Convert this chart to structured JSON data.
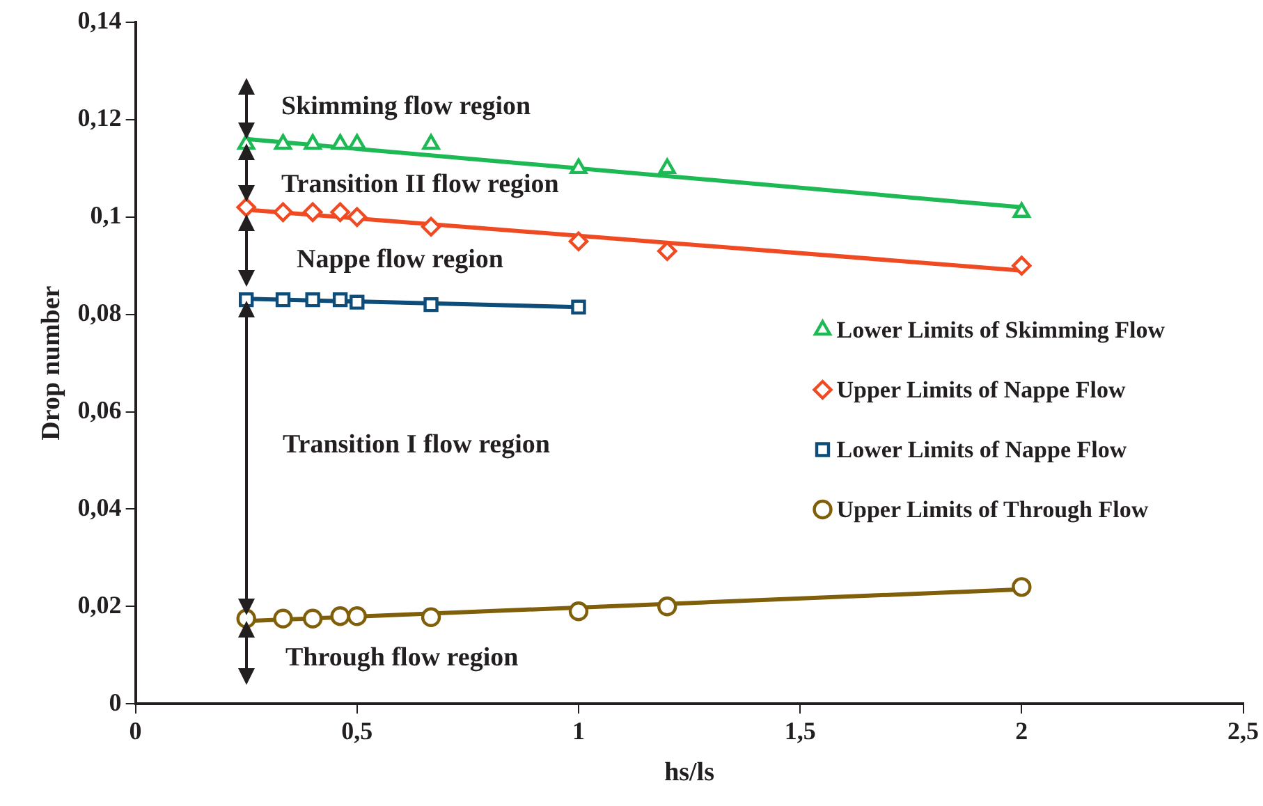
{
  "chart_data": {
    "type": "scatter",
    "xlabel": "hs/ls",
    "ylabel": "Drop number",
    "xlim": [
      0,
      2.5
    ],
    "xticks": [
      0,
      {
        "value": 0.5,
        "label": "0,5"
      },
      1,
      {
        "value": 1.5,
        "label": "1,5"
      },
      2,
      {
        "value": 2.5,
        "label": "2,5"
      }
    ],
    "ylim": [
      0,
      0.14
    ],
    "yticks": [
      0,
      {
        "value": 0.02,
        "label": "0,02"
      },
      {
        "value": 0.04,
        "label": "0,04"
      },
      {
        "value": 0.06,
        "label": "0,06"
      },
      {
        "value": 0.08,
        "label": "0,08"
      },
      {
        "value": 0.1,
        "label": "0,1"
      },
      {
        "value": 0.12,
        "label": "0,12"
      },
      {
        "value": 0.14,
        "label": "0,14"
      }
    ],
    "grid": false,
    "legend": "right",
    "annotations": [
      "Skimming flow region",
      "Transition II flow region",
      "Nappe flow region",
      "Transition I flow region",
      "Through flow region"
    ],
    "series": [
      {
        "name": "Lower Limits of Skimming Flow",
        "marker": "triangle",
        "color": "#1db954",
        "x": [
          0.25,
          0.333,
          0.4,
          0.462,
          0.5,
          0.667,
          1,
          1.2,
          2
        ],
        "values": [
          0.115,
          0.115,
          0.115,
          0.115,
          0.115,
          0.115,
          0.11,
          0.11,
          0.101
        ]
      },
      {
        "name": "Upper Limits of Nappe Flow",
        "marker": "diamond",
        "color": "#f04a23",
        "x": [
          0.25,
          0.333,
          0.4,
          0.462,
          0.5,
          0.667,
          1,
          1.2,
          2
        ],
        "values": [
          0.102,
          0.101,
          0.101,
          0.101,
          0.1,
          0.098,
          0.095,
          0.093,
          0.09
        ]
      },
      {
        "name": "Lower Limits of Nappe Flow",
        "marker": "square",
        "color": "#0e4c7a",
        "x": [
          0.25,
          0.333,
          0.4,
          0.462,
          0.5,
          0.667,
          1
        ],
        "values": [
          0.083,
          0.083,
          0.083,
          0.083,
          0.0825,
          0.082,
          0.0815
        ]
      },
      {
        "name": "Upper Limits of Through Flow",
        "marker": "circle",
        "color": "#7f5f0a",
        "x": [
          0.25,
          0.333,
          0.4,
          0.462,
          0.5,
          0.667,
          1,
          1.2,
          2
        ],
        "values": [
          0.0175,
          0.0175,
          0.0175,
          0.018,
          0.018,
          0.0178,
          0.019,
          0.02,
          0.024
        ]
      },
      {
        "type": "line",
        "marker": "none",
        "color": "#1db954",
        "x": [
          0.25,
          2
        ],
        "values": [
          0.116,
          0.102
        ]
      },
      {
        "type": "line",
        "marker": "none",
        "color": "#f04a23",
        "x": [
          0.25,
          2
        ],
        "values": [
          0.1015,
          0.089
        ]
      },
      {
        "type": "line",
        "marker": "none",
        "color": "#0e4c7a",
        "x": [
          0.25,
          1
        ],
        "values": [
          0.0832,
          0.0815
        ]
      },
      {
        "type": "line",
        "marker": "none",
        "color": "#7f5f0a",
        "x": [
          0.25,
          2
        ],
        "values": [
          0.017,
          0.0235
        ]
      }
    ]
  }
}
